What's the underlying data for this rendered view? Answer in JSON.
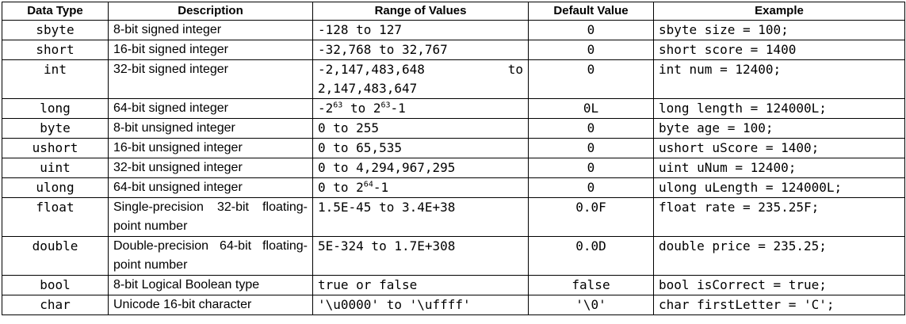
{
  "headers": {
    "data_type": "Data Type",
    "description": "Description",
    "range": "Range of Values",
    "default": "Default Value",
    "example": "Example"
  },
  "rows": [
    {
      "type": "sbyte",
      "description": "8-bit signed integer",
      "range": "-128 to 127",
      "default": "0",
      "example": "sbyte size = 100;"
    },
    {
      "type": "short",
      "description": "16-bit signed integer",
      "range": "-32,768 to 32,767",
      "default": "0",
      "example": "short score = 1400"
    },
    {
      "type": "int",
      "description": "32-bit signed integer",
      "range": "-2,147,483,648 to 2,147,483,647",
      "default": "0",
      "example": "int num = 12400;"
    },
    {
      "type": "long",
      "description": "64-bit signed integer",
      "range_base": "-2",
      "range_exp": "63",
      "range_mid": " to 2",
      "range_exp2": "63",
      "range_tail": "-1",
      "default": "0L",
      "example": "long length = 124000L;"
    },
    {
      "type": "byte",
      "description": "8-bit unsigned integer",
      "range": "0 to 255",
      "default": "0",
      "example": "byte age = 100;"
    },
    {
      "type": "ushort",
      "description": "16-bit unsigned integer",
      "range": "0 to 65,535",
      "default": "0",
      "example": "ushort uScore = 1400;"
    },
    {
      "type": "uint",
      "description": "32-bit unsigned integer",
      "range": "0 to 4,294,967,295",
      "default": "0",
      "example": "uint uNum = 12400;"
    },
    {
      "type": "ulong",
      "description": "64-bit unsigned integer",
      "range_base": "0 to 2",
      "range_exp": "64",
      "range_tail": "-1",
      "default": "0",
      "example": "ulong uLength = 124000L;"
    },
    {
      "type": "float",
      "description": "Single-precision 32-bit floating-point number",
      "range": "1.5E-45 to 3.4E+38",
      "default": "0.0F",
      "example": "float rate = 235.25F;"
    },
    {
      "type": "double",
      "description": "Double-precision 64-bit floating-point number",
      "range": "5E-324 to 1.7E+308",
      "default": "0.0D",
      "example": "double price = 235.25;"
    },
    {
      "type": "bool",
      "description": "8-bit Logical Boolean type",
      "range": "true or false",
      "default": "false",
      "example": "bool isCorrect = true;"
    },
    {
      "type": "char",
      "description": "Unicode 16-bit character",
      "range": "'\\u0000' to '\\uffff'",
      "default": "'\\0'",
      "example": "char firstLetter = 'C';"
    }
  ]
}
